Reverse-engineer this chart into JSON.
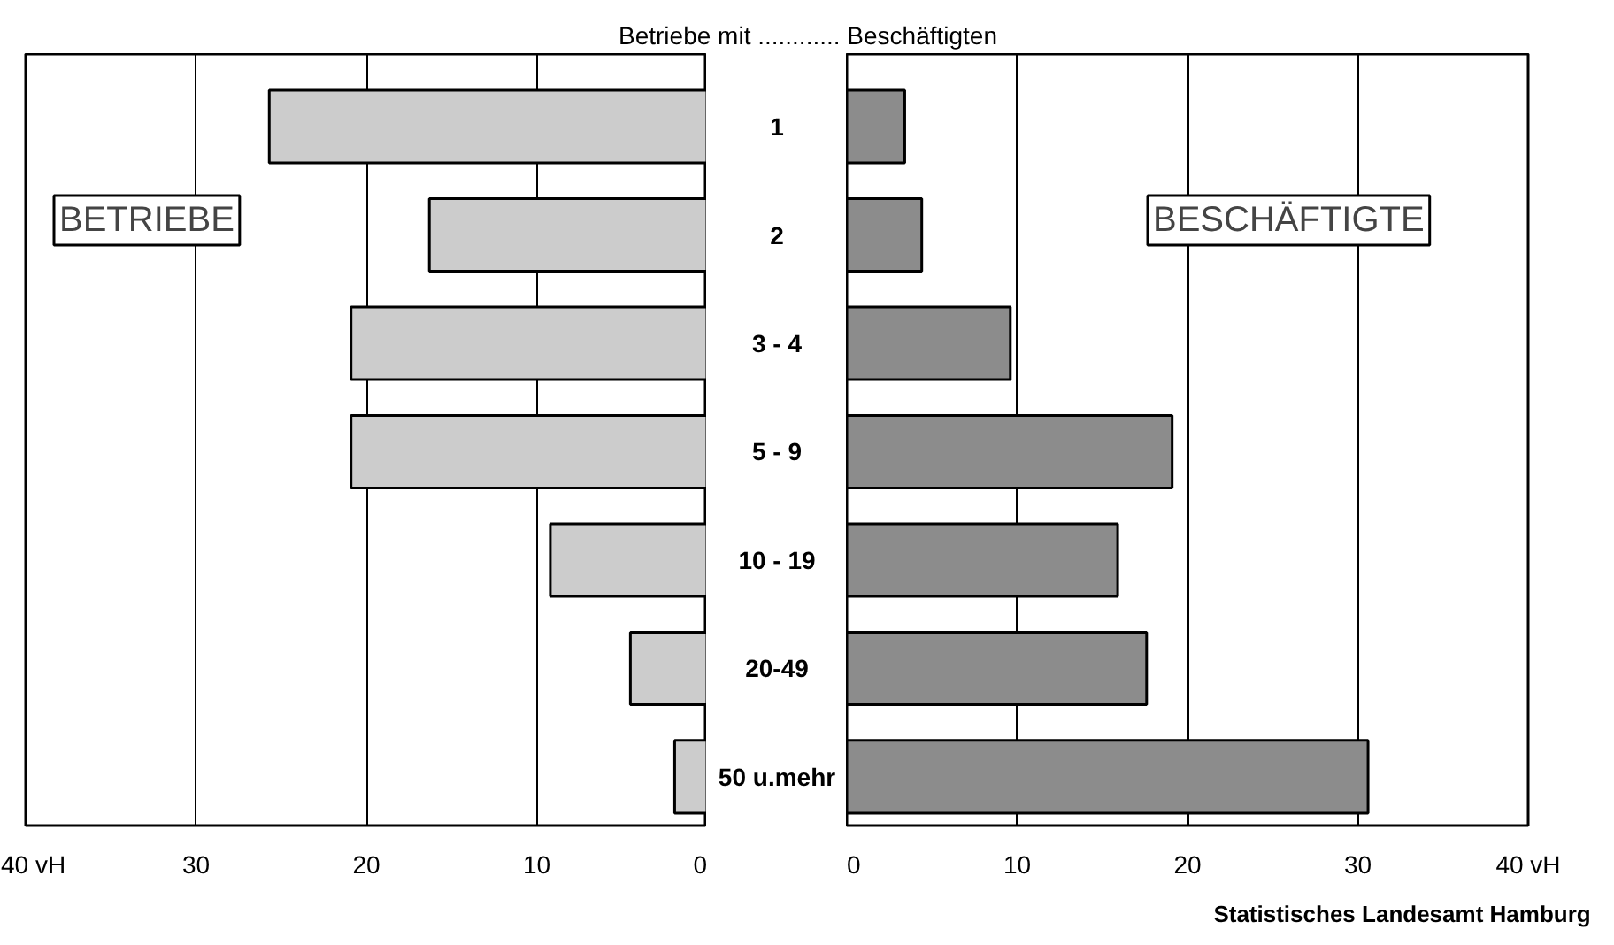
{
  "chart_data": [
    {
      "type": "bar",
      "orientation": "horizontal",
      "title": "BETRIEBE",
      "categories": [
        null,
        null,
        null,
        null,
        null,
        null,
        null
      ],
      "values": [
        25.7,
        16.3,
        20.9,
        20.9,
        9.2,
        4.5,
        1.9
      ],
      "color": "#cccccc",
      "xlim": [
        40,
        0
      ],
      "xticks": [
        {
          "value": 40,
          "label": "40 vH"
        },
        30,
        20,
        10,
        0
      ],
      "grid": "x",
      "tick_labels": "x"
    },
    {
      "type": "bar",
      "orientation": "horizontal",
      "title": "BESCHÄFTIGTE",
      "ylabel": "Betriebe mit ............ Beschäftigten",
      "categories": [
        "1",
        "2",
        "3 - 4",
        "5 - 9",
        "10 - 19",
        "20-49",
        "50 u.mehr"
      ],
      "values": [
        3.4,
        4.4,
        9.6,
        19.1,
        15.9,
        17.6,
        30.6
      ],
      "color": "#8c8c8c",
      "xlim": [
        0,
        40
      ],
      "xticks": [
        0,
        10,
        20,
        30,
        {
          "value": 40,
          "label": "40 vH"
        }
      ],
      "grid": "x",
      "annotations": [
        "Statistisches Landesamt Hamburg"
      ]
    }
  ]
}
